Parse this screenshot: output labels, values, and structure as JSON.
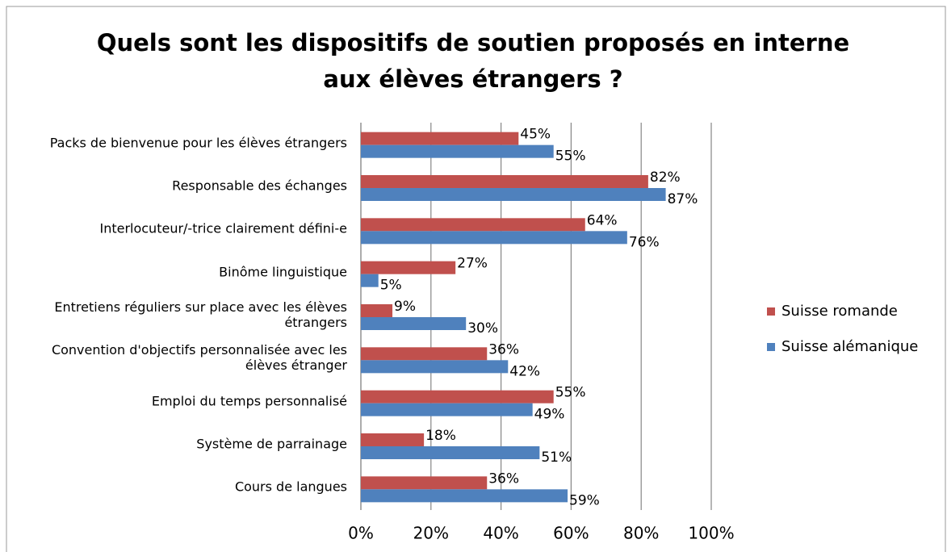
{
  "chart_data": {
    "type": "bar",
    "orientation": "horizontal",
    "title": [
      "Quels sont les dispositifs de soutien proposés en interne",
      "aux élèves étrangers  ?"
    ],
    "categories": [
      "Packs de bienvenue pour les élèves étrangers",
      "Responsable des échanges",
      "Interlocuteur/-trice clairement défini-e",
      "Binôme linguistique",
      "Entretiens réguliers sur place avec les élèves étrangers",
      "Convention d'objectifs personnalisée avec les élèves étranger",
      "Emploi du temps personnalisé",
      "Système de parrainage",
      "Cours de langues"
    ],
    "series": [
      {
        "name": "Suisse romande",
        "color": "#c0504d",
        "values": [
          45,
          82,
          64,
          27,
          9,
          36,
          55,
          18,
          36
        ],
        "value_labels": [
          "45%",
          "82%",
          "64%",
          "27%",
          "9%",
          "36%",
          "55%",
          "18%",
          "36%"
        ]
      },
      {
        "name": "Suisse alémanique",
        "color": "#4f81bd",
        "values": [
          55,
          87,
          76,
          5,
          30,
          42,
          49,
          51,
          59
        ],
        "value_labels": [
          "55%",
          "87%",
          "76%",
          "5%",
          "30%",
          "42%",
          "49%",
          "51%",
          "59%"
        ]
      }
    ],
    "xlim": [
      0,
      100
    ],
    "xticks": [
      {
        "value": 0,
        "label": "0%"
      },
      {
        "value": 20,
        "label": "20%"
      },
      {
        "value": 40,
        "label": "40%"
      },
      {
        "value": 60,
        "label": "60%"
      },
      {
        "value": 80,
        "label": "80%"
      },
      {
        "value": 100,
        "label": "100%"
      }
    ],
    "grid": true,
    "legend": "right"
  }
}
